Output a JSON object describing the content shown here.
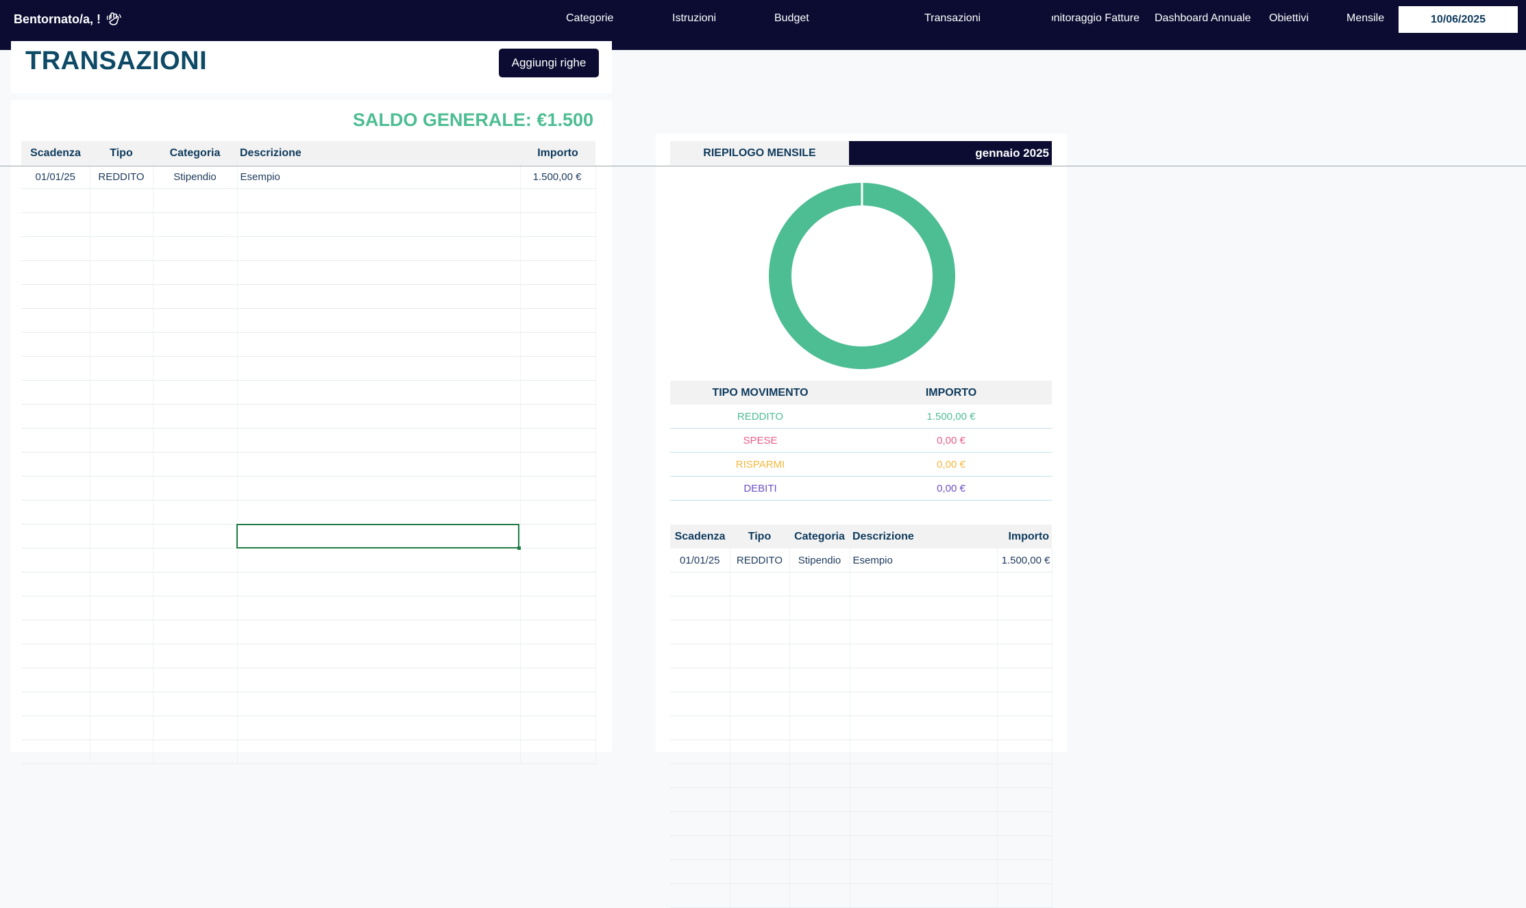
{
  "header": {
    "greeting": "Bentornato/a, !",
    "greeting_icon": "waving-hand-icon",
    "nav": [
      "Categorie",
      "Istruzioni",
      "Budget",
      "Transazioni",
      "Monitoraggio Fatture",
      "Dashboard Annuale",
      "Obiettivi",
      "Mensile"
    ],
    "date": "10/06/2025"
  },
  "page": {
    "title": "TRANSAZIONI",
    "add_rows_label": "Aggiungi righe",
    "balance": "SALDO GENERALE: €1.500"
  },
  "transactions": {
    "columns": [
      "Scadenza",
      "Tipo",
      "Categoria",
      "Descrizione",
      "Importo"
    ],
    "rows": [
      [
        "01/01/25",
        "REDDITO",
        "Stipendio",
        "Esempio",
        "1.500,00 €"
      ]
    ]
  },
  "summary": {
    "title": "RIEPILOGO MENSILE",
    "month": "gennaio 2025",
    "chart_data": {
      "type": "pie",
      "categories": [
        "REDDITO",
        "SPESE",
        "RISPARMI",
        "DEBITI"
      ],
      "values": [
        1500,
        0,
        0,
        0
      ],
      "colors": [
        "#4dbd93",
        "#e85d87",
        "#f5b83d",
        "#6d4fc2"
      ]
    },
    "type_columns": [
      "TIPO MOVIMENTO",
      "IMPORTO"
    ],
    "types": [
      {
        "label": "REDDITO",
        "amount": "1.500,00 €",
        "color": "#4dbd93"
      },
      {
        "label": "SPESE",
        "amount": "0,00 €",
        "color": "#e85d87"
      },
      {
        "label": "RISPARMI",
        "amount": "0,00 €",
        "color": "#f5b83d"
      },
      {
        "label": "DEBITI",
        "amount": "0,00 €",
        "color": "#6d4fc2"
      }
    ],
    "transactions": {
      "columns": [
        "Scadenza",
        "Tipo",
        "Categoria",
        "Descrizione",
        "Importo"
      ],
      "rows": [
        [
          "01/01/25",
          "REDDITO",
          "Stipendio",
          "Esempio",
          "1.500,00 €"
        ]
      ]
    }
  }
}
